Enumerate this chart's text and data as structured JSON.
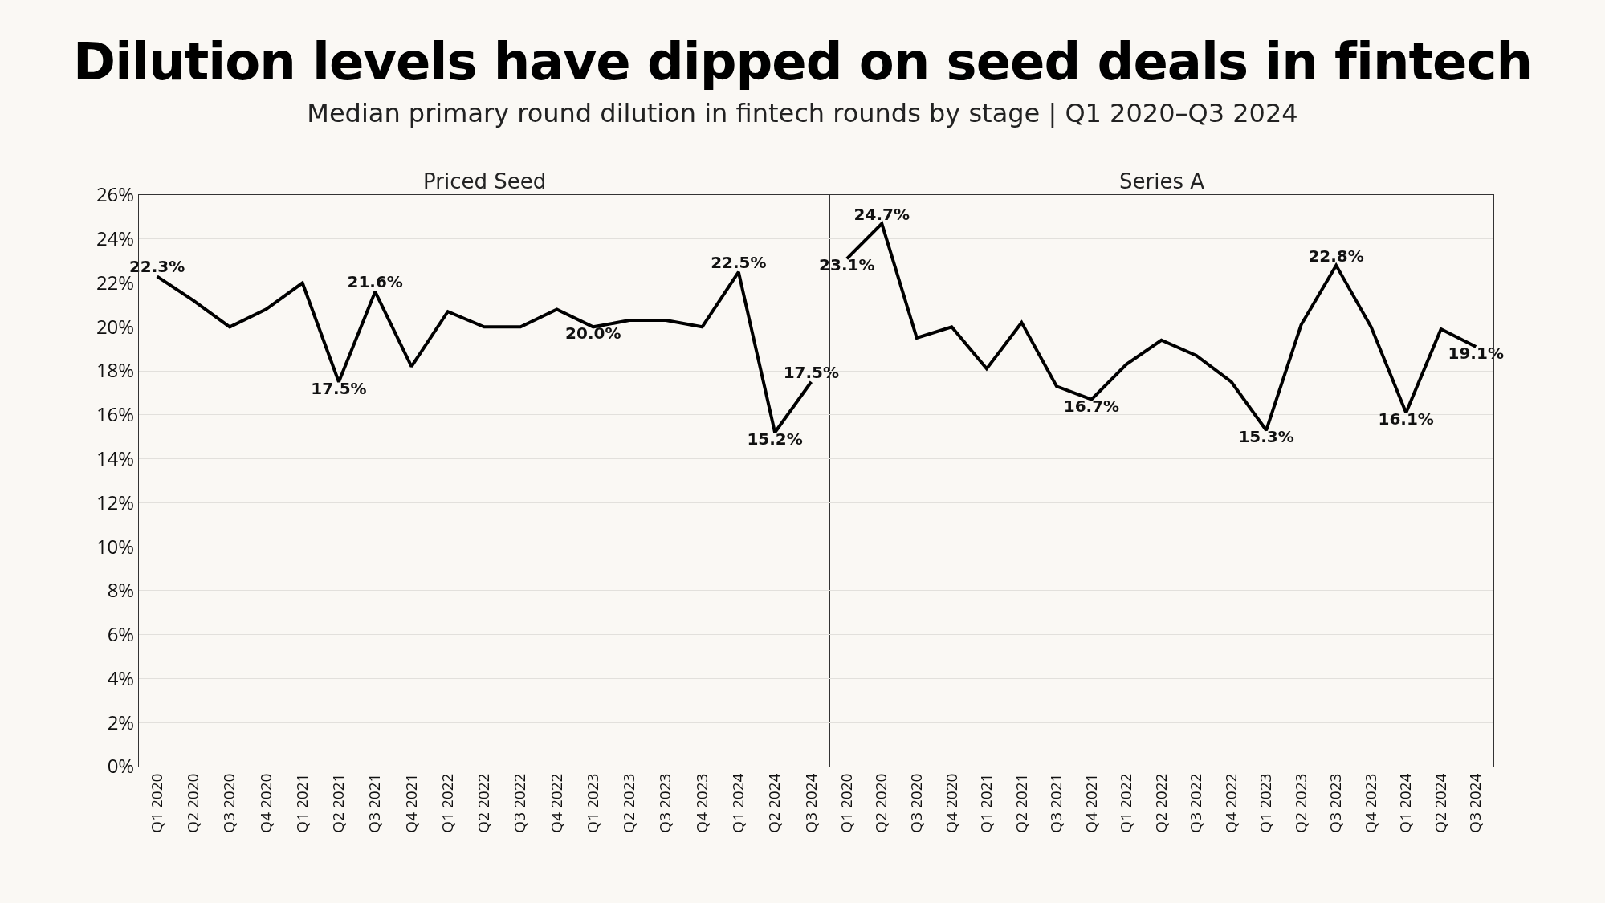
{
  "chart_data": [
    {
      "type": "line",
      "title": "Dilution levels have dipped on seed deals in fintech",
      "subtitle": "Median primary round dilution in fintech rounds by stage  | Q1 2020–Q3 2024",
      "categories": [
        "Q1 2020",
        "Q2 2020",
        "Q3 2020",
        "Q4 2020",
        "Q1 2021",
        "Q2 2021",
        "Q3 2021",
        "Q4 2021",
        "Q1 2022",
        "Q2 2022",
        "Q3 2022",
        "Q4 2022",
        "Q1 2023",
        "Q2 2023",
        "Q3 2023",
        "Q4 2023",
        "Q1 2024",
        "Q2 2024",
        "Q3 2024"
      ],
      "series": [
        {
          "name": "Priced Seed",
          "color": "#000000",
          "values": [
            22.3,
            21.2,
            20.0,
            20.8,
            22.0,
            17.5,
            21.6,
            18.2,
            20.7,
            20.0,
            20.0,
            20.8,
            20.0,
            20.3,
            20.3,
            20.0,
            22.5,
            15.2,
            17.5
          ],
          "value_labels": [
            "22.3%",
            null,
            null,
            null,
            null,
            "17.5%",
            "21.6%",
            null,
            null,
            null,
            null,
            null,
            "20.0%",
            null,
            null,
            null,
            "22.5%",
            "15.2%",
            "17.5%"
          ]
        }
      ],
      "ylim": [
        0,
        26
      ],
      "yticks": [
        {
          "value": 0,
          "label": "0%"
        },
        {
          "value": 2,
          "label": "2%"
        },
        {
          "value": 4,
          "label": "4%"
        },
        {
          "value": 6,
          "label": "6%"
        },
        {
          "value": 8,
          "label": "8%"
        },
        {
          "value": 10,
          "label": "10%"
        },
        {
          "value": 12,
          "label": "12%"
        },
        {
          "value": 14,
          "label": "14%"
        },
        {
          "value": 16,
          "label": "16%"
        },
        {
          "value": 18,
          "label": "18%"
        },
        {
          "value": 20,
          "label": "20%"
        },
        {
          "value": 22,
          "label": "22%"
        },
        {
          "value": 24,
          "label": "24%"
        },
        {
          "value": 26,
          "label": "26%"
        }
      ],
      "grid": "y",
      "legend": false,
      "line_style": "solid"
    },
    {
      "type": "line",
      "categories": [
        "Q1 2020",
        "Q2 2020",
        "Q3 2020",
        "Q4 2020",
        "Q1 2021",
        "Q2 2021",
        "Q3 2021",
        "Q4 2021",
        "Q1 2022",
        "Q2 2022",
        "Q3 2022",
        "Q4 2022",
        "Q1 2023",
        "Q2 2023",
        "Q3 2023",
        "Q4 2023",
        "Q1 2024",
        "Q2 2024",
        "Q3 2024"
      ],
      "series": [
        {
          "name": "Series A",
          "color": "#000000",
          "values": [
            23.1,
            24.7,
            19.5,
            20.0,
            18.1,
            20.2,
            17.3,
            16.7,
            18.3,
            19.4,
            18.7,
            17.5,
            15.3,
            20.1,
            22.8,
            20.0,
            16.1,
            19.9,
            19.1
          ],
          "value_labels": [
            "23.1%",
            "24.7%",
            null,
            null,
            null,
            null,
            null,
            "16.7%",
            null,
            null,
            null,
            null,
            "15.3%",
            null,
            "22.8%",
            null,
            "16.1%",
            null,
            "19.1%"
          ]
        }
      ],
      "ylim": [
        0,
        26
      ],
      "yticks": [
        {
          "value": 0,
          "label": null
        },
        {
          "value": 2,
          "label": null
        },
        {
          "value": 4,
          "label": null
        },
        {
          "value": 6,
          "label": null
        },
        {
          "value": 8,
          "label": null
        },
        {
          "value": 10,
          "label": null
        },
        {
          "value": 12,
          "label": null
        },
        {
          "value": 14,
          "label": null
        },
        {
          "value": 16,
          "label": null
        },
        {
          "value": 18,
          "label": null
        },
        {
          "value": 20,
          "label": null
        },
        {
          "value": 22,
          "label": null
        },
        {
          "value": 24,
          "label": null
        },
        {
          "value": 26,
          "label": null
        }
      ],
      "grid": "y",
      "legend": false,
      "line_style": "solid",
      "tick_labels": "x"
    }
  ]
}
